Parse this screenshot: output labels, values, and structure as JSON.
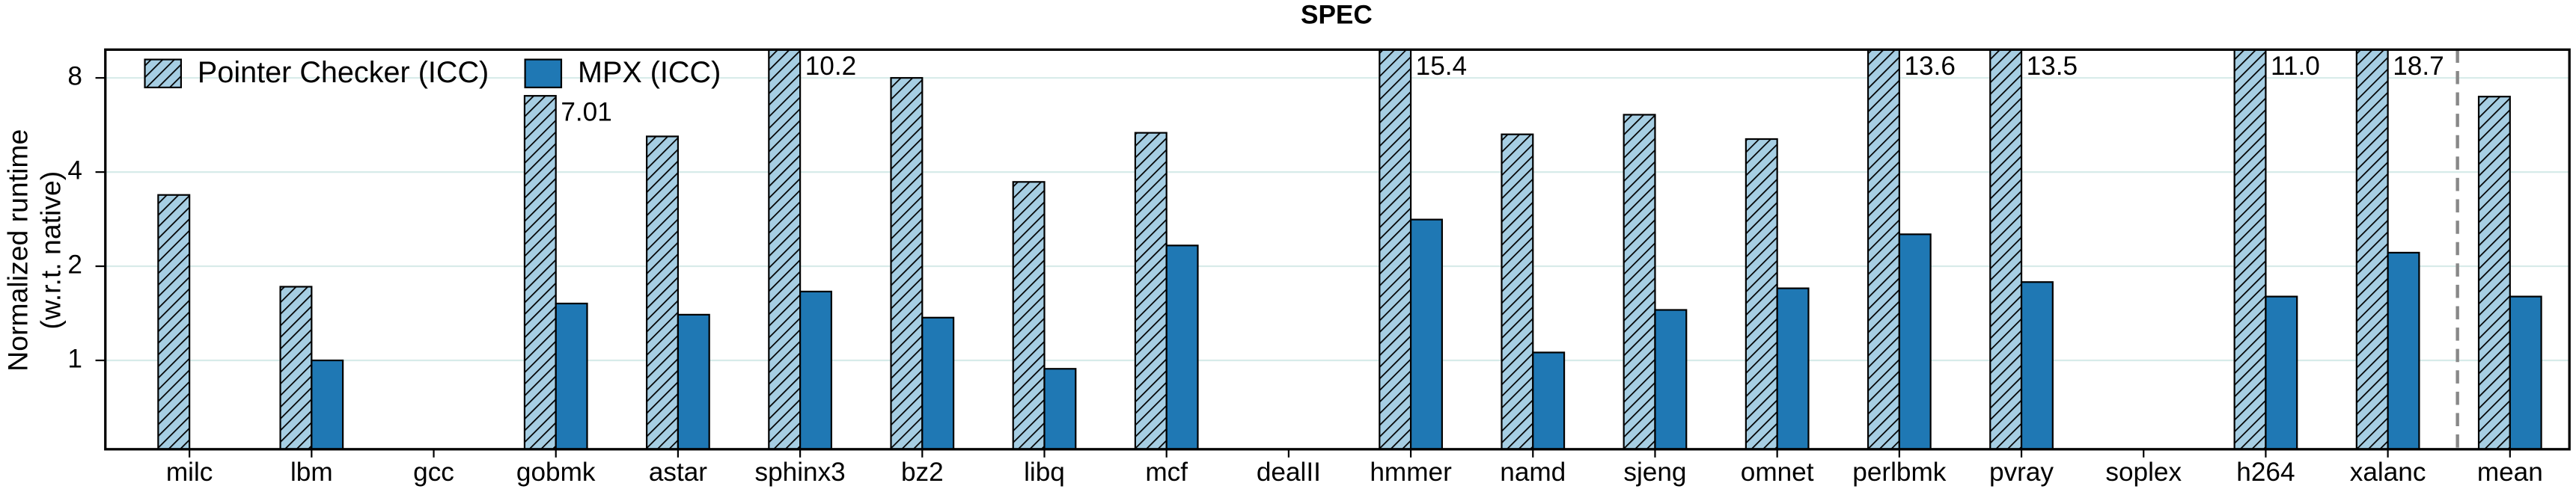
{
  "chart_data": {
    "type": "bar",
    "title": "SPEC",
    "ylabel": [
      "Normalized runtime",
      "(w.r.t. native)"
    ],
    "categories": [
      "milc",
      "lbm",
      "gcc",
      "gobmk",
      "astar",
      "sphinx3",
      "bz2",
      "libq",
      "mcf",
      "dealII",
      "hmmer",
      "namd",
      "sjeng",
      "omnet",
      "perlbmk",
      "pvray",
      "soplex",
      "h264",
      "xalanc",
      "mean"
    ],
    "series": [
      {
        "name": "Pointer Checker (ICC)",
        "color": "#a6cee3",
        "hatch": true,
        "values": [
          3.38,
          1.72,
          null,
          7.01,
          5.2,
          10.2,
          8.0,
          3.72,
          5.34,
          null,
          15.4,
          5.28,
          6.1,
          5.1,
          13.6,
          13.5,
          null,
          11.0,
          18.7,
          6.97
        ],
        "value_labels": [
          null,
          null,
          null,
          "7.01",
          null,
          "10.2",
          null,
          null,
          null,
          null,
          "15.4",
          null,
          null,
          null,
          "13.6",
          "13.5",
          null,
          "11.0",
          "18.7",
          null
        ]
      },
      {
        "name": "MPX (ICC)",
        "color": "#1f78b4",
        "values": [
          null,
          1.0,
          null,
          1.52,
          1.4,
          1.66,
          1.37,
          0.94,
          2.33,
          null,
          2.82,
          1.06,
          1.45,
          1.7,
          2.53,
          1.78,
          null,
          1.6,
          2.21,
          1.6
        ]
      }
    ],
    "log_scale": true,
    "ylim": [
      0.52,
      9.85
    ],
    "yticks": [
      1,
      2,
      4,
      8
    ],
    "grid": true,
    "legend": "upper left"
  }
}
